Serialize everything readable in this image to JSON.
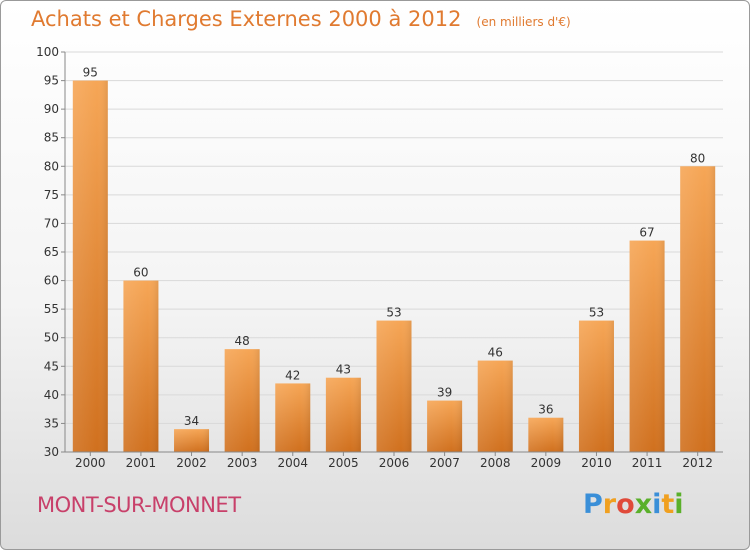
{
  "header": {
    "title": "Achats et Charges Externes 2000 à 2012",
    "unit": "(en milliers d'€)"
  },
  "footer": {
    "commune": "MONT-SUR-MONNET",
    "logo": "Proxiti"
  },
  "colors": {
    "bar_light": "#f6a656",
    "bar_dark": "#d0701e",
    "axis": "#888888",
    "grid": "#d9d9d9",
    "title": "#e07a30"
  },
  "chart_data": {
    "type": "bar",
    "title": "Achats et Charges Externes 2000 à 2012",
    "subtitle": "(en milliers d'€)",
    "categories": [
      "2000",
      "2001",
      "2002",
      "2003",
      "2004",
      "2005",
      "2006",
      "2007",
      "2008",
      "2009",
      "2010",
      "2011",
      "2012"
    ],
    "values": [
      95,
      60,
      34,
      48,
      42,
      43,
      53,
      39,
      46,
      36,
      53,
      67,
      80
    ],
    "data_labels": [
      "95",
      "60",
      "34",
      "48",
      "42",
      "43",
      "53",
      "39",
      "46",
      "36",
      "53",
      "67",
      "80"
    ],
    "xlabel": "",
    "ylabel": "",
    "ylim": [
      30,
      100
    ],
    "yticks": [
      30,
      35,
      40,
      45,
      50,
      55,
      60,
      65,
      70,
      75,
      80,
      85,
      90,
      95,
      100
    ],
    "grid": true,
    "legend": "none"
  }
}
